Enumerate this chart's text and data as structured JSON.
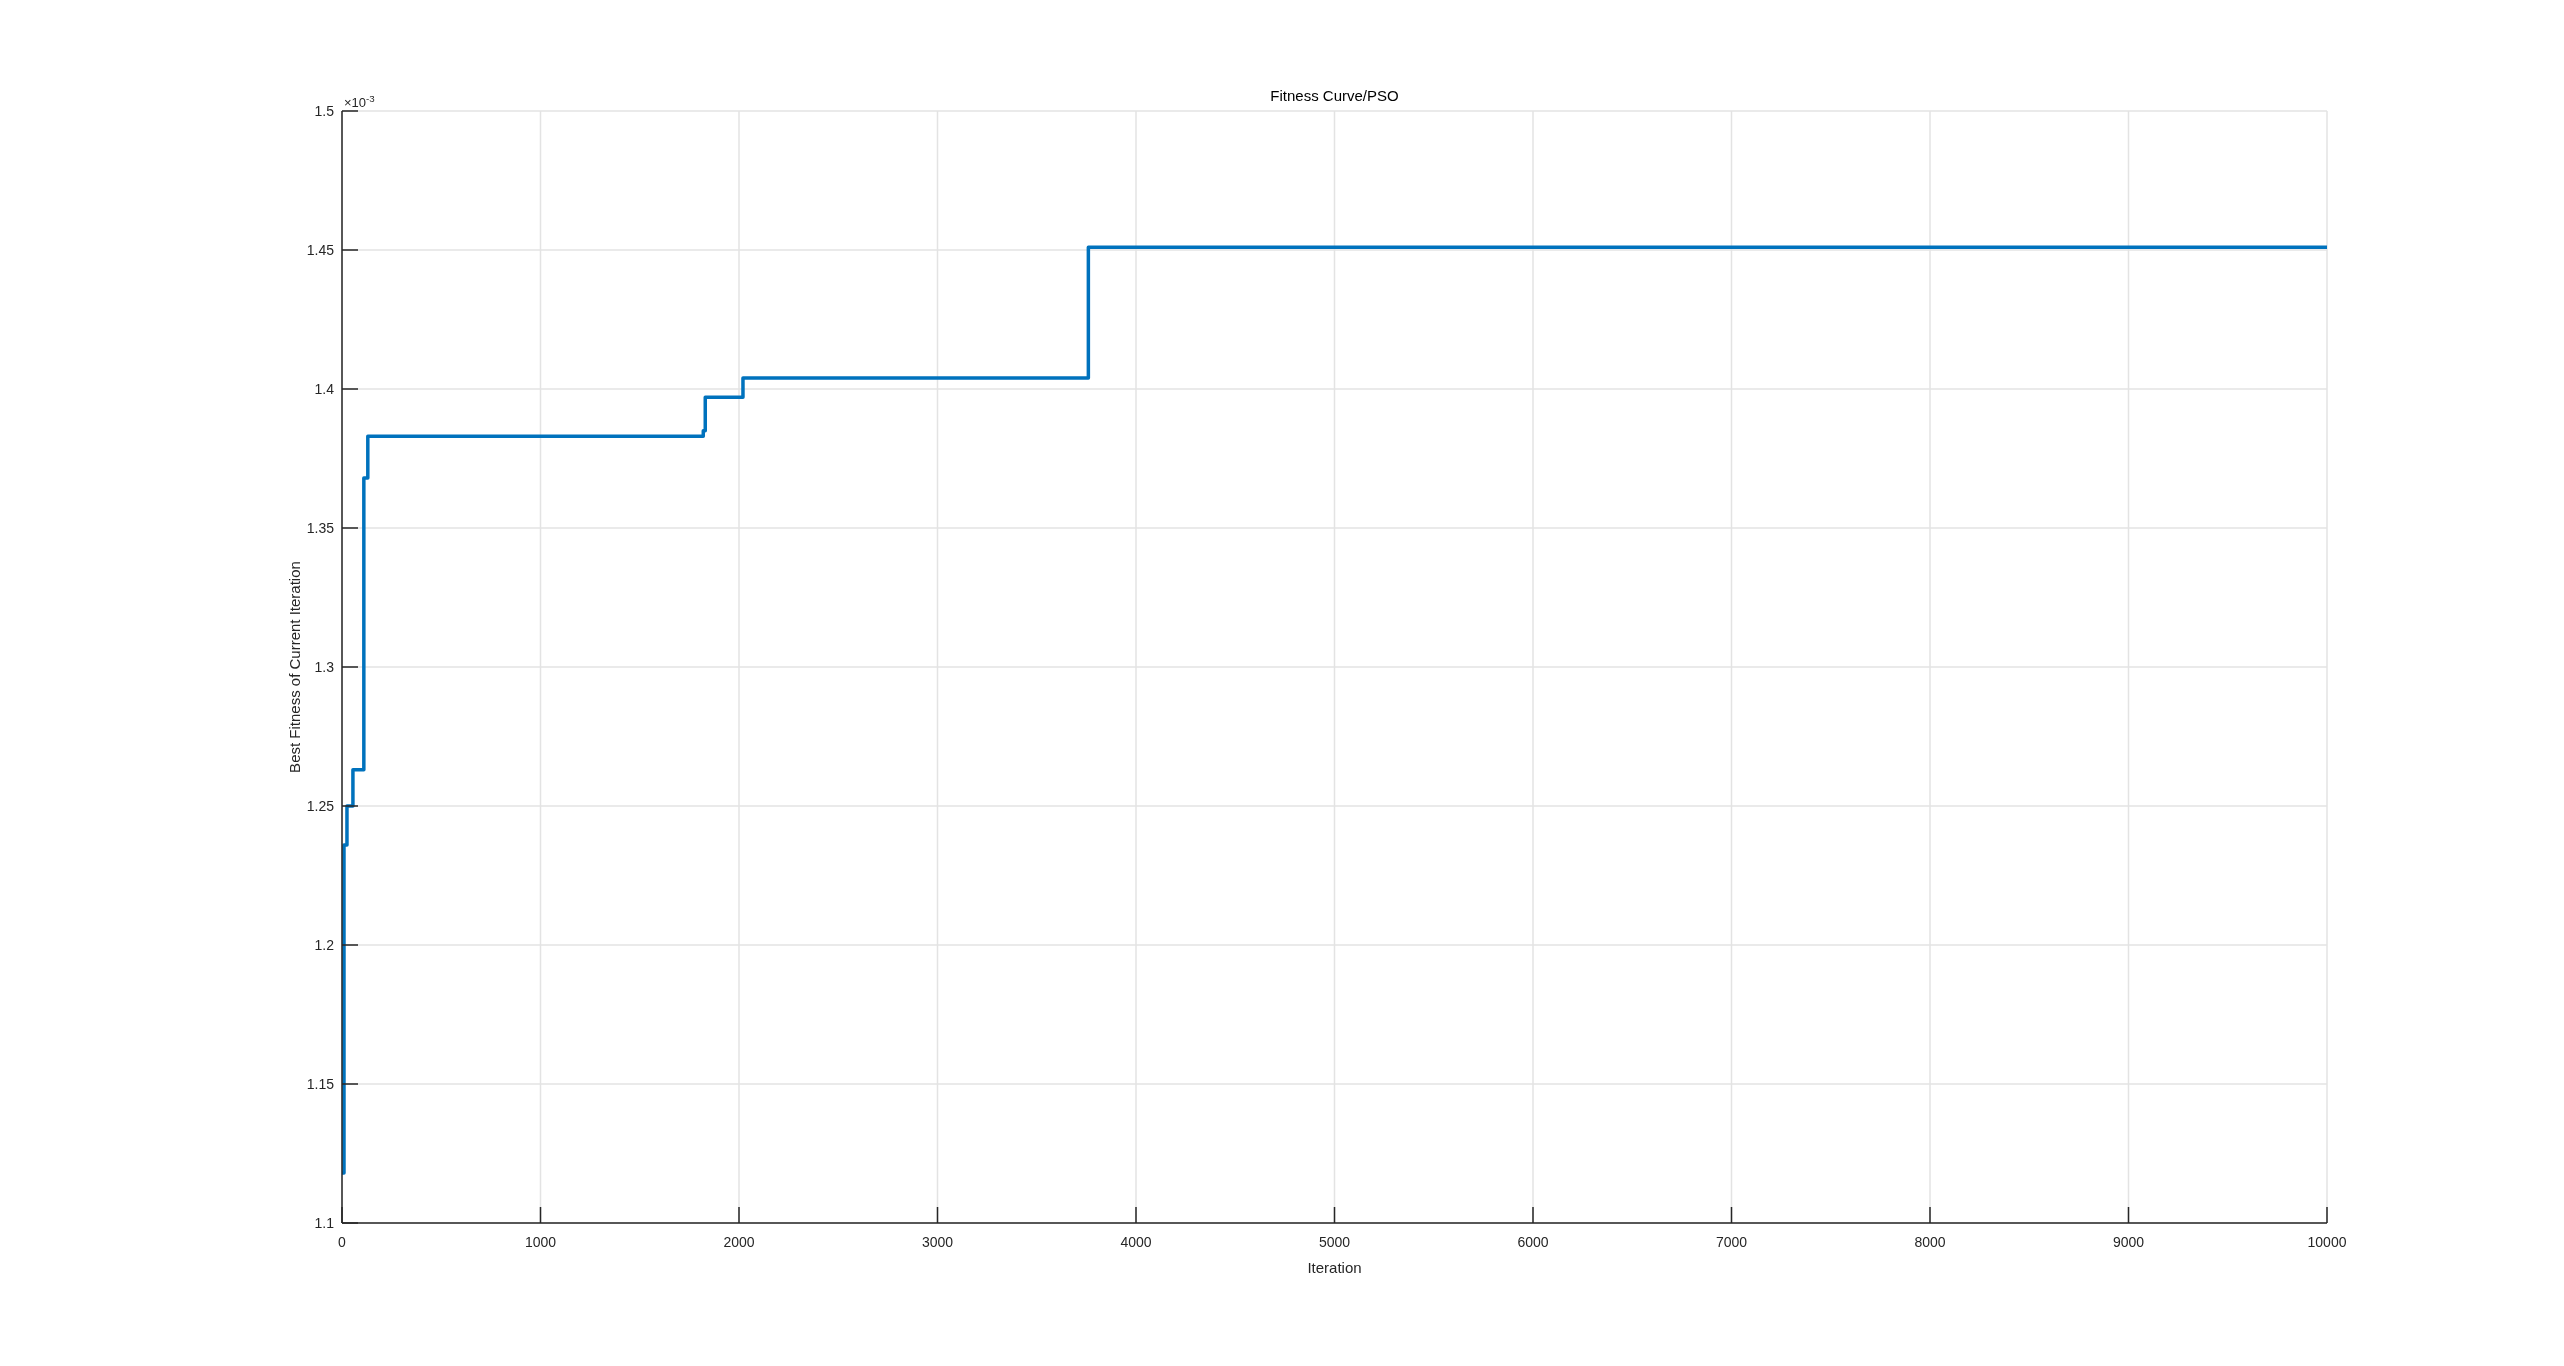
{
  "chart_data": {
    "type": "step",
    "title": "Fitness Curve/PSO",
    "xlabel": "Iteration",
    "ylabel": "Best Fitness of Current Iteration",
    "annotations": [
      "×10$^{-3}$"
    ],
    "x": [
      0,
      10,
      25,
      55,
      110,
      130,
      1820,
      1830,
      2020,
      3760,
      10000
    ],
    "series": [
      {
        "color": "#0072bd",
        "values": [
          1.118,
          1.236,
          1.25,
          1.263,
          1.368,
          1.383,
          1.385,
          1.397,
          1.404,
          1.451,
          1.451
        ]
      }
    ],
    "xlim": [
      0,
      10000
    ],
    "xticks": [
      0,
      1000,
      2000,
      3000,
      4000,
      5000,
      6000,
      7000,
      8000,
      9000,
      10000
    ],
    "ylim": [
      1.1,
      1.5
    ],
    "yticks": [
      1.1,
      1.15,
      1.2,
      1.25,
      1.3,
      1.35,
      1.4,
      1.45,
      1.5
    ],
    "grid": true,
    "line_style": "solid",
    "marker": "none"
  }
}
